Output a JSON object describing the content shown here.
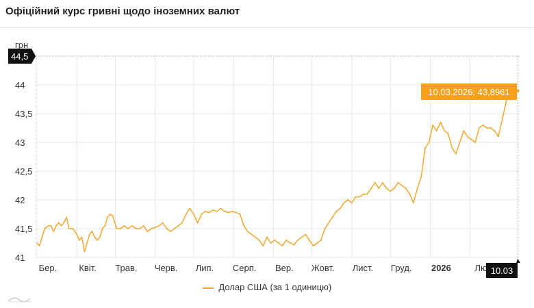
{
  "page": {
    "title": "Офіційний курс гривні щодо іноземних валют"
  },
  "colors": {
    "series": "#f0a830",
    "tooltip_bg": "#f7a11a",
    "badge_bg": "#111111",
    "grid": "#e6e6e6"
  },
  "legend": {
    "label": "Долар США (за 1 одиницю)"
  },
  "tooltip": {
    "text": "10.03.2026: 43,8961"
  },
  "crosshair": {
    "y_badge": "44,5",
    "x_badge": "10.03"
  },
  "chart_data": {
    "type": "line",
    "ylabel": "грн",
    "ylim": [
      41,
      44.5
    ],
    "yticks": [
      41,
      41.5,
      42,
      42.5,
      43,
      43.5,
      44,
      44.5
    ],
    "ytick_labels": [
      "41",
      "41,5",
      "42",
      "42,5",
      "43",
      "43,5",
      "44",
      "44,5"
    ],
    "xtick_labels": [
      "Бер.",
      "Квіт.",
      "Трав.",
      "Черв.",
      "Лип.",
      "Серп.",
      "Вер.",
      "Жовт.",
      "Лист.",
      "Груд.",
      "2026",
      "Лю"
    ],
    "xtick_dates": [
      "2025-03-01",
      "2025-04-01",
      "2025-05-01",
      "2025-06-01",
      "2025-07-01",
      "2025-08-01",
      "2025-09-01",
      "2025-10-01",
      "2025-11-01",
      "2025-12-01",
      "2026-01-01",
      "2026-02-01"
    ],
    "xlim": [
      "2025-02-28",
      "2026-03-11"
    ],
    "grid": true,
    "legend_position": "bottom",
    "series": [
      {
        "name": "Долар США (за 1 одиницю)",
        "points": [
          [
            "2025-03-01",
            41.25
          ],
          [
            "2025-03-03",
            41.2
          ],
          [
            "2025-03-05",
            41.35
          ],
          [
            "2025-03-07",
            41.5
          ],
          [
            "2025-03-10",
            41.55
          ],
          [
            "2025-03-12",
            41.55
          ],
          [
            "2025-03-14",
            41.45
          ],
          [
            "2025-03-16",
            41.55
          ],
          [
            "2025-03-18",
            41.6
          ],
          [
            "2025-03-20",
            41.55
          ],
          [
            "2025-03-22",
            41.6
          ],
          [
            "2025-03-24",
            41.7
          ],
          [
            "2025-03-26",
            41.5
          ],
          [
            "2025-03-29",
            41.5
          ],
          [
            "2025-04-01",
            41.4
          ],
          [
            "2025-04-03",
            41.3
          ],
          [
            "2025-04-05",
            41.35
          ],
          [
            "2025-04-07",
            41.1
          ],
          [
            "2025-04-09",
            41.25
          ],
          [
            "2025-04-11",
            41.4
          ],
          [
            "2025-04-13",
            41.45
          ],
          [
            "2025-04-15",
            41.35
          ],
          [
            "2025-04-17",
            41.3
          ],
          [
            "2025-04-19",
            41.35
          ],
          [
            "2025-04-21",
            41.5
          ],
          [
            "2025-04-23",
            41.55
          ],
          [
            "2025-04-25",
            41.7
          ],
          [
            "2025-04-27",
            41.75
          ],
          [
            "2025-04-29",
            41.72
          ],
          [
            "2025-05-02",
            41.5
          ],
          [
            "2025-05-05",
            41.5
          ],
          [
            "2025-05-08",
            41.55
          ],
          [
            "2025-05-11",
            41.5
          ],
          [
            "2025-05-14",
            41.55
          ],
          [
            "2025-05-17",
            41.5
          ],
          [
            "2025-05-20",
            41.5
          ],
          [
            "2025-05-23",
            41.55
          ],
          [
            "2025-05-26",
            41.45
          ],
          [
            "2025-05-29",
            41.5
          ],
          [
            "2025-06-01",
            41.52
          ],
          [
            "2025-06-04",
            41.55
          ],
          [
            "2025-06-07",
            41.6
          ],
          [
            "2025-06-10",
            41.5
          ],
          [
            "2025-06-13",
            41.45
          ],
          [
            "2025-06-16",
            41.5
          ],
          [
            "2025-06-19",
            41.55
          ],
          [
            "2025-06-22",
            41.6
          ],
          [
            "2025-06-25",
            41.75
          ],
          [
            "2025-06-28",
            41.85
          ],
          [
            "2025-07-01",
            41.75
          ],
          [
            "2025-07-04",
            41.6
          ],
          [
            "2025-07-07",
            41.75
          ],
          [
            "2025-07-10",
            41.8
          ],
          [
            "2025-07-13",
            41.78
          ],
          [
            "2025-07-16",
            41.82
          ],
          [
            "2025-07-19",
            41.8
          ],
          [
            "2025-07-22",
            41.85
          ],
          [
            "2025-07-25",
            41.8
          ],
          [
            "2025-07-28",
            41.78
          ],
          [
            "2025-07-31",
            41.8
          ],
          [
            "2025-08-03",
            41.78
          ],
          [
            "2025-08-06",
            41.75
          ],
          [
            "2025-08-09",
            41.55
          ],
          [
            "2025-08-12",
            41.45
          ],
          [
            "2025-08-15",
            41.4
          ],
          [
            "2025-08-18",
            41.35
          ],
          [
            "2025-08-21",
            41.3
          ],
          [
            "2025-08-24",
            41.2
          ],
          [
            "2025-08-27",
            41.35
          ],
          [
            "2025-08-30",
            41.25
          ],
          [
            "2025-09-02",
            41.3
          ],
          [
            "2025-09-05",
            41.25
          ],
          [
            "2025-09-08",
            41.2
          ],
          [
            "2025-09-11",
            41.3
          ],
          [
            "2025-09-14",
            41.25
          ],
          [
            "2025-09-17",
            41.22
          ],
          [
            "2025-09-20",
            41.3
          ],
          [
            "2025-09-23",
            41.35
          ],
          [
            "2025-09-26",
            41.4
          ],
          [
            "2025-09-29",
            41.3
          ],
          [
            "2025-10-02",
            41.2
          ],
          [
            "2025-10-05",
            41.25
          ],
          [
            "2025-10-08",
            41.3
          ],
          [
            "2025-10-11",
            41.5
          ],
          [
            "2025-10-14",
            41.6
          ],
          [
            "2025-10-17",
            41.7
          ],
          [
            "2025-10-20",
            41.8
          ],
          [
            "2025-10-23",
            41.85
          ],
          [
            "2025-10-26",
            41.95
          ],
          [
            "2025-10-29",
            42.0
          ],
          [
            "2025-11-01",
            41.95
          ],
          [
            "2025-11-04",
            42.05
          ],
          [
            "2025-11-07",
            42.05
          ],
          [
            "2025-11-10",
            42.1
          ],
          [
            "2025-11-13",
            42.1
          ],
          [
            "2025-11-16",
            42.2
          ],
          [
            "2025-11-19",
            42.3
          ],
          [
            "2025-11-22",
            42.2
          ],
          [
            "2025-11-25",
            42.3
          ],
          [
            "2025-11-28",
            42.2
          ],
          [
            "2025-12-01",
            42.15
          ],
          [
            "2025-12-04",
            42.2
          ],
          [
            "2025-12-07",
            42.3
          ],
          [
            "2025-12-10",
            42.25
          ],
          [
            "2025-12-13",
            42.2
          ],
          [
            "2025-12-16",
            42.1
          ],
          [
            "2025-12-19",
            41.95
          ],
          [
            "2025-12-22",
            42.2
          ],
          [
            "2025-12-25",
            42.4
          ],
          [
            "2025-12-28",
            42.9
          ],
          [
            "2025-12-31",
            43.0
          ],
          [
            "2026-01-03",
            43.3
          ],
          [
            "2026-01-06",
            43.2
          ],
          [
            "2026-01-09",
            43.35
          ],
          [
            "2026-01-12",
            43.2
          ],
          [
            "2026-01-15",
            43.15
          ],
          [
            "2026-01-18",
            42.9
          ],
          [
            "2026-01-21",
            42.8
          ],
          [
            "2026-01-24",
            43.0
          ],
          [
            "2026-01-27",
            43.2
          ],
          [
            "2026-01-30",
            43.1
          ],
          [
            "2026-02-02",
            43.05
          ],
          [
            "2026-02-05",
            43.0
          ],
          [
            "2026-02-08",
            43.25
          ],
          [
            "2026-02-11",
            43.3
          ],
          [
            "2026-02-14",
            43.25
          ],
          [
            "2026-02-17",
            43.25
          ],
          [
            "2026-02-20",
            43.2
          ],
          [
            "2026-02-23",
            43.1
          ],
          [
            "2026-02-26",
            43.4
          ],
          [
            "2026-03-01",
            43.7
          ],
          [
            "2026-03-04",
            43.95
          ],
          [
            "2026-03-07",
            43.75
          ],
          [
            "2026-03-10",
            43.8961
          ]
        ]
      }
    ],
    "annotations": [
      {
        "date": "2026-03-10",
        "value": 43.8961,
        "label": "10.03.2026: 43,8961"
      }
    ]
  }
}
